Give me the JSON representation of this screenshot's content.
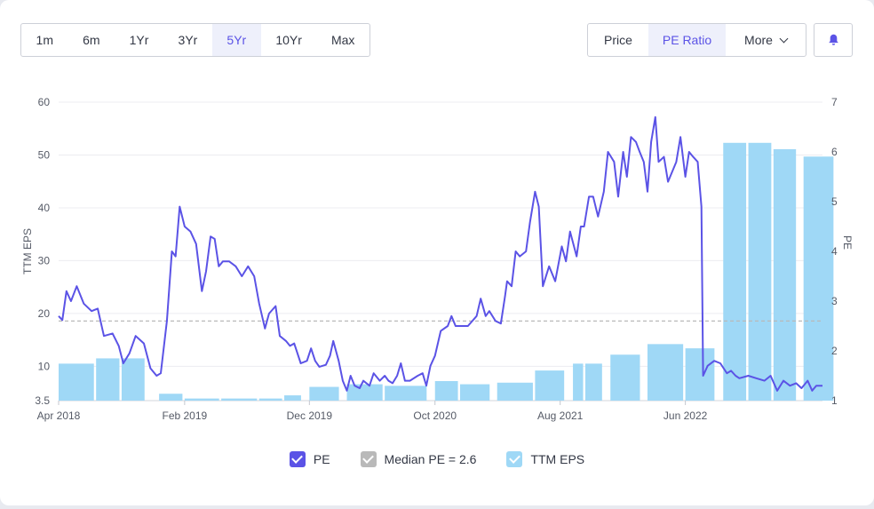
{
  "range_buttons": [
    "1m",
    "6m",
    "1Yr",
    "3Yr",
    "5Yr",
    "10Yr",
    "Max"
  ],
  "range_active_index": 4,
  "metric_buttons": {
    "price": "Price",
    "pe_ratio": "PE Ratio",
    "more": "More"
  },
  "metric_active": "pe_ratio",
  "bell_icon": "bell-icon",
  "colors": {
    "pe_line": "#5b53e6",
    "eps_bar": "#9fd8f6",
    "median": "#b9b9b9",
    "accent": "#5b53e6"
  },
  "legend": {
    "pe": "PE",
    "median": "Median PE = 2.6",
    "eps": "TTM EPS"
  },
  "chart_data": {
    "type": "bar+line",
    "left_axis": {
      "label": "TTM EPS",
      "ticks": [
        "3.5",
        "10",
        "20",
        "30",
        "40",
        "50",
        "60"
      ],
      "range": [
        3.5,
        60
      ]
    },
    "right_axis": {
      "label": "PE",
      "ticks": [
        "1",
        "2",
        "3",
        "4",
        "5",
        "6",
        "7"
      ],
      "range": [
        1,
        7
      ]
    },
    "x_ticks": [
      "Apr 2018",
      "Feb 2019",
      "Dec 2019",
      "Oct 2020",
      "Aug 2021",
      "Jun 2022"
    ],
    "x_range": [
      "2018-04-01",
      "2023-04-30"
    ],
    "median_pe": 2.6,
    "eps_bars": [
      {
        "start": "2018-04-01",
        "end": "2018-06-30",
        "value": 10.5
      },
      {
        "start": "2018-07-01",
        "end": "2018-08-31",
        "value": 11.5
      },
      {
        "start": "2018-09-01",
        "end": "2018-10-31",
        "value": 11.5
      },
      {
        "start": "2018-12-01",
        "end": "2019-01-31",
        "value": 4.8
      },
      {
        "start": "2019-02-01",
        "end": "2019-04-30",
        "value": 3.9
      },
      {
        "start": "2019-05-01",
        "end": "2019-07-31",
        "value": 3.9
      },
      {
        "start": "2019-08-01",
        "end": "2019-09-30",
        "value": 3.9
      },
      {
        "start": "2019-10-01",
        "end": "2019-11-15",
        "value": 4.5
      },
      {
        "start": "2019-12-01",
        "end": "2020-02-15",
        "value": 6.1
      },
      {
        "start": "2020-03-01",
        "end": "2020-05-31",
        "value": 6.6
      },
      {
        "start": "2020-06-01",
        "end": "2020-09-15",
        "value": 6.3
      },
      {
        "start": "2020-10-01",
        "end": "2020-11-30",
        "value": 7.2
      },
      {
        "start": "2020-12-01",
        "end": "2021-02-15",
        "value": 6.6
      },
      {
        "start": "2021-03-01",
        "end": "2021-05-31",
        "value": 6.9
      },
      {
        "start": "2021-06-01",
        "end": "2021-08-15",
        "value": 9.2
      },
      {
        "start": "2021-09-01",
        "end": "2021-09-30",
        "value": 10.5
      },
      {
        "start": "2021-10-01",
        "end": "2021-11-15",
        "value": 10.5
      },
      {
        "start": "2021-12-01",
        "end": "2022-02-15",
        "value": 12.2
      },
      {
        "start": "2022-03-01",
        "end": "2022-05-31",
        "value": 14.2
      },
      {
        "start": "2022-06-01",
        "end": "2022-08-15",
        "value": 13.4
      },
      {
        "start": "2022-09-01",
        "end": "2022-10-31",
        "value": 52.3
      },
      {
        "start": "2022-11-01",
        "end": "2022-12-31",
        "value": 52.3
      },
      {
        "start": "2023-01-01",
        "end": "2023-03-01",
        "value": 51.1
      },
      {
        "start": "2023-03-15",
        "end": "2023-05-31",
        "value": 49.7
      }
    ],
    "pe_line": [
      [
        "2018-04-01",
        2.7
      ],
      [
        "2018-04-10",
        2.62
      ],
      [
        "2018-04-20",
        3.2
      ],
      [
        "2018-05-01",
        3.0
      ],
      [
        "2018-05-15",
        3.3
      ],
      [
        "2018-06-01",
        2.95
      ],
      [
        "2018-06-20",
        2.8
      ],
      [
        "2018-07-05",
        2.85
      ],
      [
        "2018-07-20",
        2.3
      ],
      [
        "2018-08-10",
        2.35
      ],
      [
        "2018-08-25",
        2.1
      ],
      [
        "2018-09-05",
        1.75
      ],
      [
        "2018-09-20",
        1.95
      ],
      [
        "2018-10-05",
        2.3
      ],
      [
        "2018-10-25",
        2.15
      ],
      [
        "2018-11-10",
        1.65
      ],
      [
        "2018-11-25",
        1.5
      ],
      [
        "2018-12-05",
        1.55
      ],
      [
        "2018-12-20",
        2.6
      ],
      [
        "2019-01-01",
        4.0
      ],
      [
        "2019-01-10",
        3.9
      ],
      [
        "2019-01-20",
        4.9
      ],
      [
        "2019-02-01",
        4.5
      ],
      [
        "2019-02-15",
        4.4
      ],
      [
        "2019-03-01",
        4.15
      ],
      [
        "2019-03-15",
        3.2
      ],
      [
        "2019-03-25",
        3.6
      ],
      [
        "2019-04-05",
        4.3
      ],
      [
        "2019-04-15",
        4.25
      ],
      [
        "2019-04-25",
        3.7
      ],
      [
        "2019-05-05",
        3.8
      ],
      [
        "2019-05-20",
        3.8
      ],
      [
        "2019-06-05",
        3.7
      ],
      [
        "2019-06-20",
        3.5
      ],
      [
        "2019-07-05",
        3.7
      ],
      [
        "2019-07-20",
        3.5
      ],
      [
        "2019-08-01",
        2.95
      ],
      [
        "2019-08-15",
        2.45
      ],
      [
        "2019-08-25",
        2.75
      ],
      [
        "2019-09-10",
        2.9
      ],
      [
        "2019-09-20",
        2.3
      ],
      [
        "2019-10-05",
        2.2
      ],
      [
        "2019-10-15",
        2.1
      ],
      [
        "2019-10-25",
        2.15
      ],
      [
        "2019-11-10",
        1.75
      ],
      [
        "2019-11-25",
        1.8
      ],
      [
        "2019-12-05",
        2.05
      ],
      [
        "2019-12-15",
        1.8
      ],
      [
        "2019-12-25",
        1.68
      ],
      [
        "2020-01-10",
        1.72
      ],
      [
        "2020-01-20",
        1.9
      ],
      [
        "2020-01-28",
        2.2
      ],
      [
        "2020-02-10",
        1.8
      ],
      [
        "2020-02-20",
        1.4
      ],
      [
        "2020-03-01",
        1.2
      ],
      [
        "2020-03-10",
        1.5
      ],
      [
        "2020-03-20",
        1.3
      ],
      [
        "2020-04-01",
        1.25
      ],
      [
        "2020-04-10",
        1.4
      ],
      [
        "2020-04-25",
        1.3
      ],
      [
        "2020-05-05",
        1.55
      ],
      [
        "2020-05-20",
        1.4
      ],
      [
        "2020-06-01",
        1.5
      ],
      [
        "2020-06-10",
        1.4
      ],
      [
        "2020-06-20",
        1.35
      ],
      [
        "2020-07-01",
        1.5
      ],
      [
        "2020-07-10",
        1.75
      ],
      [
        "2020-07-20",
        1.4
      ],
      [
        "2020-08-01",
        1.4
      ],
      [
        "2020-08-20",
        1.5
      ],
      [
        "2020-09-01",
        1.55
      ],
      [
        "2020-09-10",
        1.3
      ],
      [
        "2020-09-20",
        1.7
      ],
      [
        "2020-10-01",
        1.9
      ],
      [
        "2020-10-15",
        2.4
      ],
      [
        "2020-11-01",
        2.5
      ],
      [
        "2020-11-10",
        2.7
      ],
      [
        "2020-11-20",
        2.5
      ],
      [
        "2020-12-01",
        2.5
      ],
      [
        "2020-12-20",
        2.5
      ],
      [
        "2021-01-10",
        2.7
      ],
      [
        "2021-01-20",
        3.05
      ],
      [
        "2021-02-01",
        2.7
      ],
      [
        "2021-02-10",
        2.8
      ],
      [
        "2021-02-25",
        2.6
      ],
      [
        "2021-03-10",
        2.55
      ],
      [
        "2021-03-20",
        3.1
      ],
      [
        "2021-03-25",
        3.4
      ],
      [
        "2021-04-05",
        3.3
      ],
      [
        "2021-04-15",
        4.0
      ],
      [
        "2021-04-25",
        3.9
      ],
      [
        "2021-05-10",
        4.0
      ],
      [
        "2021-05-20",
        4.6
      ],
      [
        "2021-06-01",
        5.2
      ],
      [
        "2021-06-10",
        4.9
      ],
      [
        "2021-06-20",
        3.3
      ],
      [
        "2021-07-05",
        3.7
      ],
      [
        "2021-07-20",
        3.4
      ],
      [
        "2021-08-05",
        4.1
      ],
      [
        "2021-08-15",
        3.8
      ],
      [
        "2021-08-25",
        4.4
      ],
      [
        "2021-09-10",
        3.9
      ],
      [
        "2021-09-20",
        4.5
      ],
      [
        "2021-09-28",
        4.5
      ],
      [
        "2021-10-10",
        5.1
      ],
      [
        "2021-10-20",
        5.1
      ],
      [
        "2021-11-01",
        4.7
      ],
      [
        "2021-11-15",
        5.2
      ],
      [
        "2021-11-25",
        6.0
      ],
      [
        "2021-12-10",
        5.8
      ],
      [
        "2021-12-20",
        5.1
      ],
      [
        "2022-01-01",
        6.0
      ],
      [
        "2022-01-10",
        5.5
      ],
      [
        "2022-01-20",
        6.3
      ],
      [
        "2022-02-01",
        6.2
      ],
      [
        "2022-02-10",
        6.0
      ],
      [
        "2022-02-20",
        5.8
      ],
      [
        "2022-03-01",
        5.2
      ],
      [
        "2022-03-10",
        6.2
      ],
      [
        "2022-03-20",
        6.7
      ],
      [
        "2022-03-28",
        5.8
      ],
      [
        "2022-04-10",
        5.9
      ],
      [
        "2022-04-20",
        5.4
      ],
      [
        "2022-05-10",
        5.8
      ],
      [
        "2022-05-20",
        6.3
      ],
      [
        "2022-06-01",
        5.5
      ],
      [
        "2022-06-10",
        6.0
      ],
      [
        "2022-06-20",
        5.9
      ],
      [
        "2022-07-01",
        5.8
      ],
      [
        "2022-07-10",
        4.9
      ],
      [
        "2022-07-14",
        1.5
      ],
      [
        "2022-07-25",
        1.7
      ],
      [
        "2022-08-10",
        1.8
      ],
      [
        "2022-08-25",
        1.75
      ],
      [
        "2022-09-10",
        1.55
      ],
      [
        "2022-09-20",
        1.6
      ],
      [
        "2022-10-01",
        1.5
      ],
      [
        "2022-10-10",
        1.45
      ],
      [
        "2022-11-01",
        1.5
      ],
      [
        "2022-11-20",
        1.45
      ],
      [
        "2022-12-10",
        1.4
      ],
      [
        "2022-12-25",
        1.5
      ],
      [
        "2023-01-10",
        1.2
      ],
      [
        "2023-01-25",
        1.4
      ],
      [
        "2023-02-10",
        1.3
      ],
      [
        "2023-02-25",
        1.35
      ],
      [
        "2023-03-10",
        1.25
      ],
      [
        "2023-03-25",
        1.4
      ],
      [
        "2023-04-05",
        1.2
      ],
      [
        "2023-04-15",
        1.3
      ],
      [
        "2023-04-30",
        1.3
      ]
    ]
  }
}
